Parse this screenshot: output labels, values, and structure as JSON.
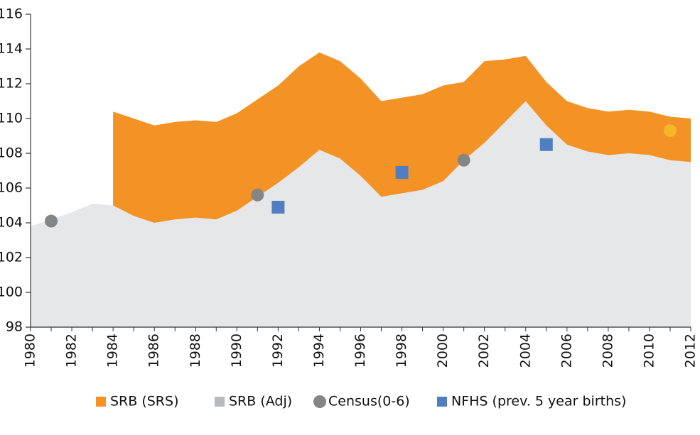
{
  "chart_data": {
    "type": "area",
    "x": [
      1980,
      1981,
      1982,
      1983,
      1984,
      1985,
      1986,
      1987,
      1988,
      1989,
      1990,
      1991,
      1992,
      1993,
      1994,
      1995,
      1996,
      1997,
      1998,
      1999,
      2000,
      2001,
      2002,
      2003,
      2004,
      2005,
      2006,
      2007,
      2008,
      2009,
      2010,
      2011,
      2012
    ],
    "xlim": [
      1980,
      2012
    ],
    "xticks": [
      1980,
      1982,
      1984,
      1986,
      1988,
      1990,
      1992,
      1994,
      1996,
      1998,
      2000,
      2002,
      2004,
      2006,
      2008,
      2010,
      2012
    ],
    "ylim": [
      98,
      116
    ],
    "yticks": [
      98,
      100,
      102,
      104,
      106,
      108,
      110,
      112,
      114,
      116
    ],
    "series": [
      {
        "name": "SRB (SRS)",
        "type": "area",
        "color": "#f39325",
        "values": [
          null,
          null,
          null,
          null,
          110.4,
          110.0,
          109.6,
          109.8,
          109.9,
          109.8,
          110.3,
          111.1,
          111.9,
          113.0,
          113.8,
          113.3,
          112.3,
          111.0,
          111.2,
          111.4,
          111.9,
          112.1,
          113.3,
          113.4,
          113.6,
          112.1,
          111.0,
          110.6,
          110.4,
          110.5,
          110.4,
          110.1,
          110.0
        ]
      },
      {
        "name": "SRB (Adj)",
        "type": "area",
        "color": "#e6e7e8",
        "legend_color": "#b8b9bb",
        "values": [
          103.8,
          104.2,
          104.6,
          105.1,
          105.0,
          104.4,
          104.0,
          104.2,
          104.3,
          104.2,
          104.7,
          105.5,
          106.3,
          107.2,
          108.2,
          107.7,
          106.7,
          105.5,
          105.7,
          105.9,
          106.4,
          107.6,
          108.6,
          109.8,
          111.0,
          109.6,
          108.5,
          108.1,
          107.9,
          108.0,
          107.9,
          107.6,
          107.5
        ]
      },
      {
        "name": "Census(0-6)",
        "type": "circle",
        "color": "#858585",
        "x": [
          1981,
          1991,
          2001,
          2011
        ],
        "values": [
          104.1,
          105.6,
          107.6,
          109.3
        ],
        "point_colors": [
          "#858585",
          "#858585",
          "#858585",
          "#f7b52a"
        ]
      },
      {
        "name": "NFHS (prev. 5 year births)",
        "type": "square",
        "color": "#4f7ec1",
        "x": [
          1992,
          1998,
          2005
        ],
        "values": [
          104.9,
          106.9,
          108.5
        ]
      }
    ]
  }
}
